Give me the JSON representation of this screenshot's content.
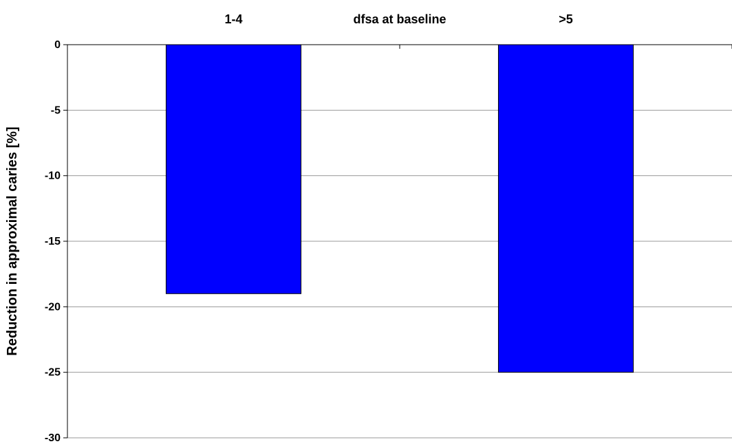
{
  "chart_data": {
    "type": "bar",
    "categories": [
      "1-4",
      ">5"
    ],
    "values": [
      -19,
      -25
    ],
    "xlabel": "dfsa at baseline",
    "ylabel": "Reduction in approximal caries [%]",
    "ylim": [
      -30,
      0
    ],
    "yticks": [
      0,
      -5,
      -10,
      -15,
      -20,
      -25,
      -30
    ],
    "y_tick_labels": [
      "0",
      "-5",
      "-10",
      "-15",
      "-20",
      "-25",
      "-30"
    ],
    "grid": true,
    "x_axis_position": "top",
    "bar_color": "#0000FF",
    "bar_edge_color": "#000000",
    "grid_color": "#999999"
  }
}
